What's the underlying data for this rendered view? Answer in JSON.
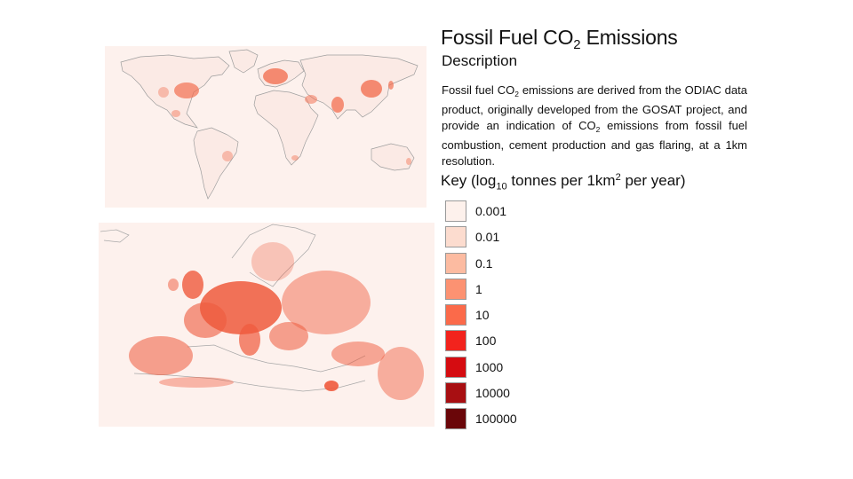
{
  "title": {
    "pre": "Fossil Fuel CO",
    "sub": "2",
    "post": " Emissions"
  },
  "description": {
    "heading": "Description",
    "text_pre": "Fossil fuel CO",
    "sub1": "2",
    "text_mid": " emissions are derived from the ODIAC data product, originally developed from the GOSAT project, and provide an indication of CO",
    "sub2": "2",
    "text_post": " emissions from fossil fuel combustion, cement production and gas flaring, at a 1km resolution."
  },
  "key": {
    "heading_pre": "Key (log",
    "heading_sub": "10",
    "heading_mid": " tonnes per 1km",
    "heading_sup": "2",
    "heading_post": " per year)",
    "items": [
      {
        "label": "0.001",
        "color": "#fdf1ec"
      },
      {
        "label": "0.01",
        "color": "#fcdccf"
      },
      {
        "label": "0.1",
        "color": "#fcbba1"
      },
      {
        "label": "1",
        "color": "#fc9272"
      },
      {
        "label": "10",
        "color": "#fb6a4a"
      },
      {
        "label": "100",
        "color": "#f2231d"
      },
      {
        "label": "1000",
        "color": "#d50c11"
      },
      {
        "label": "10000",
        "color": "#a80f12"
      },
      {
        "label": "100000",
        "color": "#6a0609"
      }
    ]
  },
  "maps": {
    "world": {
      "background": "#fdf1ed",
      "emission_color": "#f26b4c"
    },
    "europe": {
      "background": "#fdf1ed",
      "emission_color": "#ef5a3c"
    }
  }
}
